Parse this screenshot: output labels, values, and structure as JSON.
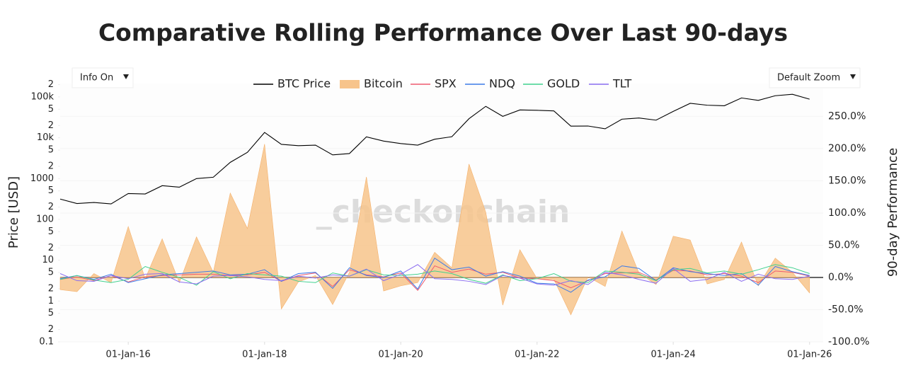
{
  "chart_data": {
    "type": "line",
    "title": "Comparative Rolling Performance Over Last 90-days",
    "ylabel": "Price [USD]",
    "y2label": "90-day Performance",
    "watermark": "_checkonchain",
    "buttons": [
      "Info On",
      "Default Zoom"
    ],
    "log_y": true,
    "xlim": [
      "2015-01-01",
      "2026-03-15"
    ],
    "xticks": [
      {
        "value": "2016-01-01",
        "label": "01-Jan-16"
      },
      {
        "value": "2018-01-01",
        "label": "01-Jan-18"
      },
      {
        "value": "2020-01-01",
        "label": "01-Jan-20"
      },
      {
        "value": "2022-01-01",
        "label": "01-Jan-22"
      },
      {
        "value": "2024-01-01",
        "label": "01-Jan-24"
      },
      {
        "value": "2026-01-01",
        "label": "01-Jan-26"
      }
    ],
    "ylim": [
      0.1,
      213000
    ],
    "yticks": [
      0.1,
      {
        "value": 0.2,
        "label": "2"
      },
      {
        "value": 0.5,
        "label": "5"
      },
      1,
      2,
      5,
      10,
      {
        "value": 20,
        "label": "2"
      },
      {
        "value": 50,
        "label": "5"
      },
      100,
      {
        "value": 200,
        "label": "2"
      },
      {
        "value": 500,
        "label": "5"
      },
      1000,
      {
        "value": 2000,
        "label": "2"
      },
      {
        "value": 5000,
        "label": "5"
      },
      {
        "value": 10000,
        "label": "10k"
      },
      {
        "value": 20000,
        "label": "2"
      },
      {
        "value": 50000,
        "label": "5"
      },
      {
        "value": 100000,
        "label": "100k"
      },
      {
        "value": 200000,
        "label": "2"
      }
    ],
    "y2lim": [
      -100,
      301
    ],
    "y2ticks": [
      {
        "value": -100,
        "label": "-100.0%"
      },
      {
        "value": -50,
        "label": "-50.0%"
      },
      {
        "value": 0,
        "label": "0.0%"
      },
      {
        "value": 50,
        "label": "50.0%"
      },
      {
        "value": 100,
        "label": "100.0%"
      },
      {
        "value": 150,
        "label": "150.0%"
      },
      {
        "value": 200,
        "label": "200.0%"
      },
      {
        "value": 250,
        "label": "250.0%"
      }
    ],
    "x": [
      "2015-01-01",
      "2015-04-01",
      "2015-07-01",
      "2015-10-01",
      "2016-01-01",
      "2016-04-01",
      "2016-07-01",
      "2016-10-01",
      "2017-01-01",
      "2017-04-01",
      "2017-07-01",
      "2017-10-01",
      "2018-01-01",
      "2018-04-01",
      "2018-07-01",
      "2018-10-01",
      "2019-01-01",
      "2019-04-01",
      "2019-07-01",
      "2019-10-01",
      "2020-01-01",
      "2020-04-01",
      "2020-07-01",
      "2020-10-01",
      "2021-01-01",
      "2021-04-01",
      "2021-07-01",
      "2021-10-01",
      "2022-01-01",
      "2022-04-01",
      "2022-07-01",
      "2022-10-01",
      "2023-01-01",
      "2023-04-01",
      "2023-07-01",
      "2023-10-01",
      "2024-01-01",
      "2024-04-01",
      "2024-07-01",
      "2024-10-01",
      "2025-01-01",
      "2025-04-01",
      "2025-07-01",
      "2025-10-01",
      "2026-01-01"
    ],
    "series": [
      {
        "name": "BTC Price",
        "color": "#000000",
        "values": [
          315,
          245,
          260,
          240,
          430,
          420,
          670,
          615,
          1000,
          1080,
          2500,
          4400,
          13500,
          6900,
          6400,
          6600,
          3800,
          4100,
          10500,
          8300,
          7200,
          6600,
          9200,
          10600,
          29300,
          58800,
          33500,
          48000,
          47000,
          45500,
          19300,
          19400,
          16600,
          28500,
          30500,
          27000,
          44200,
          69700,
          62700,
          60800,
          94400,
          82500,
          107000,
          116000,
          88000
        ]
      },
      {
        "name": "Bitcoin",
        "color": "#f7c48b",
        "fill": true,
        "axis": "y2",
        "values": [
          -19,
          -22,
          6,
          -8,
          79,
          -2,
          60,
          -8,
          63,
          8,
          131,
          76,
          207,
          -49,
          -7,
          3,
          -42,
          8,
          156,
          -21,
          -13,
          -8,
          39,
          15,
          176,
          101,
          -43,
          43,
          -2,
          -3,
          -58,
          1,
          -14,
          72,
          7,
          -11,
          64,
          58,
          -10,
          -3,
          55,
          -13,
          30,
          8,
          -24
        ]
      },
      {
        "name": "SPX",
        "color": "#ef5a6f",
        "axis": "y2",
        "values": [
          -3,
          1,
          -5,
          3,
          -7,
          1,
          3,
          4,
          5,
          5,
          3,
          4,
          8,
          -6,
          3,
          7,
          -14,
          12,
          4,
          1,
          7,
          -20,
          18,
          8,
          13,
          5,
          8,
          -1,
          -2,
          -5,
          -16,
          -5,
          6,
          7,
          8,
          -4,
          11,
          10,
          4,
          6,
          2,
          -8,
          10,
          8,
          2
        ]
      },
      {
        "name": "NDQ",
        "color": "#3d7be8",
        "axis": "y2",
        "values": [
          -2,
          3,
          -3,
          5,
          -8,
          -2,
          4,
          6,
          8,
          10,
          4,
          5,
          12,
          -6,
          6,
          8,
          -17,
          15,
          3,
          0,
          10,
          -18,
          30,
          12,
          16,
          2,
          9,
          2,
          -9,
          -10,
          -23,
          -4,
          1,
          18,
          14,
          -5,
          15,
          9,
          6,
          3,
          6,
          -12,
          17,
          9,
          3
        ]
      },
      {
        "name": "GOLD",
        "color": "#3fd18e",
        "axis": "y2",
        "values": [
          -3,
          3,
          -4,
          -8,
          -3,
          17,
          8,
          0,
          -12,
          9,
          -2,
          6,
          4,
          2,
          -6,
          -8,
          7,
          2,
          12,
          4,
          3,
          5,
          10,
          6,
          -3,
          -9,
          4,
          -5,
          -2,
          6,
          -6,
          -8,
          10,
          8,
          5,
          -5,
          12,
          14,
          7,
          10,
          5,
          12,
          20,
          15,
          6
        ]
      },
      {
        "name": "TLT",
        "color": "#8a6cf0",
        "axis": "y2",
        "values": [
          6,
          -5,
          -6,
          3,
          -2,
          5,
          6,
          -7,
          -10,
          2,
          3,
          1,
          -3,
          -5,
          2,
          -1,
          4,
          2,
          13,
          -5,
          5,
          20,
          -2,
          -3,
          -6,
          -11,
          3,
          -1,
          -10,
          -12,
          -5,
          -11,
          8,
          4,
          -3,
          -9,
          14,
          -6,
          -3,
          8,
          -6,
          5,
          -2,
          -3,
          2
        ]
      }
    ]
  }
}
